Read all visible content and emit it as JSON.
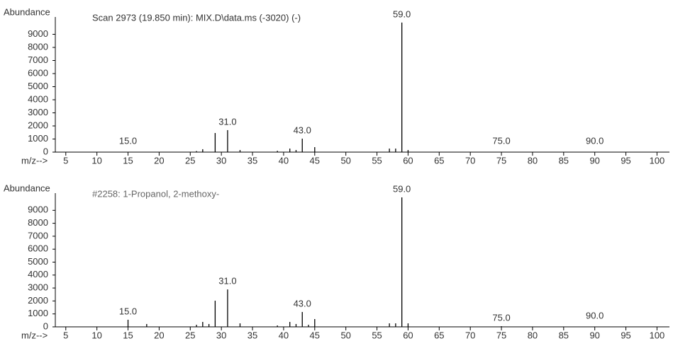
{
  "chart_data": [
    {
      "type": "bar",
      "title": "Scan 2973 (19.850 min): MIX.D\\data.ms (-3020) (-)",
      "ylabel": "Abundance",
      "xlabel": "m/z-->",
      "x": [
        26,
        27,
        29,
        31,
        33,
        39,
        41,
        42,
        43,
        45,
        57,
        58,
        59,
        60
      ],
      "values": [
        80,
        220,
        1460,
        1680,
        160,
        100,
        270,
        160,
        1030,
        380,
        270,
        270,
        9900,
        160
      ],
      "color": "#000000",
      "peak_labels": [
        {
          "value": 15,
          "label": "15.0"
        },
        {
          "value": 31,
          "label": "31.0"
        },
        {
          "value": 43,
          "label": "43.0"
        },
        {
          "value": 59,
          "label": "59.0"
        },
        {
          "value": 75,
          "label": "75.0"
        },
        {
          "value": 90,
          "label": "90.0"
        }
      ],
      "xlim": [
        4,
        102
      ],
      "xticks": [
        5,
        10,
        15,
        20,
        25,
        30,
        35,
        40,
        45,
        50,
        55,
        60,
        65,
        70,
        75,
        80,
        85,
        90,
        95,
        100
      ],
      "ylim": [
        0,
        10000
      ],
      "yticks": [
        0,
        1000,
        2000,
        3000,
        4000,
        5000,
        6000,
        7000,
        8000,
        9000
      ]
    },
    {
      "type": "bar",
      "title": "#2258: 1-Propanol, 2-methoxy-",
      "ylabel": "Abundance",
      "xlabel": "m/z-->",
      "x": [
        15,
        18,
        26,
        27,
        28,
        29,
        31,
        33,
        39,
        41,
        42,
        43,
        44,
        45,
        57,
        58,
        59,
        60,
        75
      ],
      "values": [
        550,
        220,
        160,
        380,
        220,
        2020,
        2890,
        270,
        110,
        380,
        220,
        1150,
        160,
        600,
        270,
        270,
        9999,
        270,
        50
      ],
      "color": "#000000",
      "peak_labels": [
        {
          "value": 15,
          "label": "15.0"
        },
        {
          "value": 31,
          "label": "31.0"
        },
        {
          "value": 43,
          "label": "43.0"
        },
        {
          "value": 59,
          "label": "59.0"
        },
        {
          "value": 75,
          "label": "75.0"
        },
        {
          "value": 90,
          "label": "90.0"
        }
      ],
      "xlim": [
        4,
        102
      ],
      "xticks": [
        5,
        10,
        15,
        20,
        25,
        30,
        35,
        40,
        45,
        50,
        55,
        60,
        65,
        70,
        75,
        80,
        85,
        90,
        95,
        100
      ],
      "ylim": [
        0,
        10000
      ],
      "yticks": [
        0,
        1000,
        2000,
        3000,
        4000,
        5000,
        6000,
        7000,
        8000,
        9000
      ]
    }
  ]
}
